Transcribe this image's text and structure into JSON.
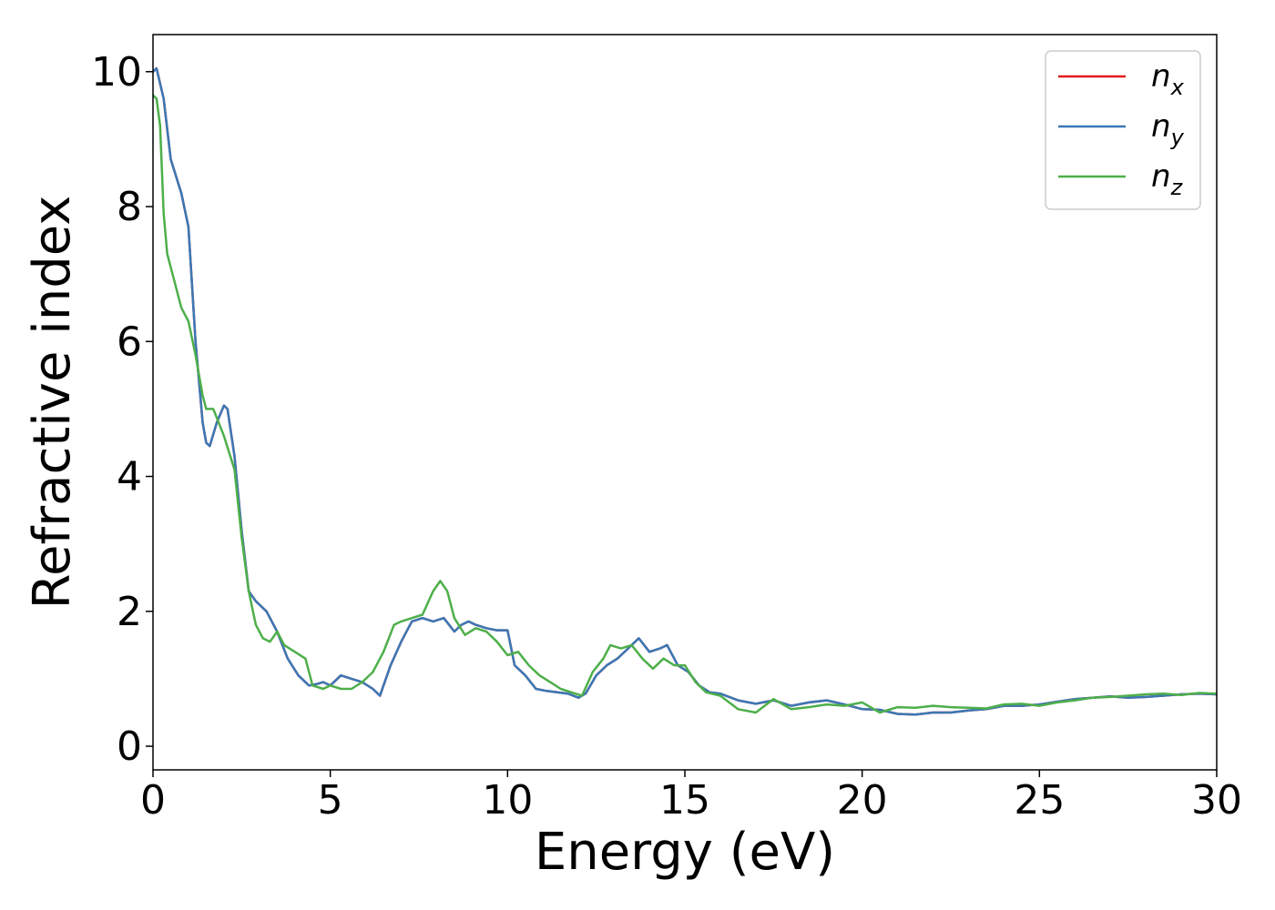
{
  "chart_data": {
    "type": "line",
    "title": "",
    "xlabel": "Energy (eV)",
    "ylabel": "Refractive index",
    "xlim": [
      0,
      30
    ],
    "ylim": [
      -0.35,
      10.55
    ],
    "xticks": [
      0,
      5,
      10,
      15,
      20,
      25,
      30
    ],
    "yticks": [
      0,
      2,
      4,
      6,
      8,
      10
    ],
    "grid": false,
    "legend_position": "top-right",
    "series": [
      {
        "name": "n",
        "subscript": "x",
        "color": "#e41a1c",
        "x": [
          0,
          0.1,
          0.3,
          0.5,
          0.8,
          1.0,
          1.2,
          1.4,
          1.5,
          1.6,
          1.8,
          2.0,
          2.1,
          2.3,
          2.5,
          2.7,
          2.9,
          3.2,
          3.5,
          3.8,
          4.1,
          4.4,
          4.6,
          4.8,
          5.0,
          5.3,
          5.6,
          5.9,
          6.2,
          6.4,
          6.7,
          7.0,
          7.3,
          7.6,
          7.9,
          8.2,
          8.5,
          8.7,
          8.9,
          9.1,
          9.4,
          9.7,
          10.0,
          10.2,
          10.5,
          10.8,
          11.1,
          11.4,
          11.7,
          12.0,
          12.2,
          12.5,
          12.8,
          13.1,
          13.4,
          13.7,
          14.0,
          14.3,
          14.5,
          14.8,
          15.1,
          15.4,
          15.7,
          16.0,
          16.5,
          17.0,
          17.5,
          18.0,
          18.5,
          19.0,
          19.5,
          20.0,
          20.5,
          21.0,
          21.5,
          22.0,
          22.5,
          23.0,
          23.5,
          24.0,
          24.5,
          25.0,
          25.5,
          26.0,
          26.5,
          27.0,
          27.5,
          28.0,
          28.5,
          29.0,
          29.5,
          30.0
        ],
        "y": [
          10.0,
          10.05,
          9.6,
          8.7,
          8.2,
          7.7,
          6.0,
          4.8,
          4.5,
          4.45,
          4.8,
          5.05,
          5.0,
          4.3,
          3.2,
          2.3,
          2.15,
          2.0,
          1.7,
          1.3,
          1.05,
          0.9,
          0.92,
          0.95,
          0.9,
          1.05,
          1.0,
          0.95,
          0.85,
          0.75,
          1.2,
          1.55,
          1.85,
          1.9,
          1.85,
          1.9,
          1.7,
          1.8,
          1.85,
          1.8,
          1.75,
          1.72,
          1.72,
          1.2,
          1.05,
          0.85,
          0.82,
          0.8,
          0.78,
          0.72,
          0.78,
          1.05,
          1.2,
          1.3,
          1.45,
          1.6,
          1.4,
          1.45,
          1.5,
          1.2,
          1.1,
          0.9,
          0.8,
          0.78,
          0.68,
          0.63,
          0.68,
          0.6,
          0.65,
          0.68,
          0.62,
          0.55,
          0.54,
          0.48,
          0.47,
          0.5,
          0.5,
          0.53,
          0.55,
          0.6,
          0.6,
          0.62,
          0.66,
          0.7,
          0.72,
          0.74,
          0.72,
          0.73,
          0.75,
          0.77,
          0.78,
          0.77
        ]
      },
      {
        "name": "n",
        "subscript": "y",
        "color": "#3a78b5",
        "x": [
          0,
          0.1,
          0.3,
          0.5,
          0.8,
          1.0,
          1.2,
          1.4,
          1.5,
          1.6,
          1.8,
          2.0,
          2.1,
          2.3,
          2.5,
          2.7,
          2.9,
          3.2,
          3.5,
          3.8,
          4.1,
          4.4,
          4.6,
          4.8,
          5.0,
          5.3,
          5.6,
          5.9,
          6.2,
          6.4,
          6.7,
          7.0,
          7.3,
          7.6,
          7.9,
          8.2,
          8.5,
          8.7,
          8.9,
          9.1,
          9.4,
          9.7,
          10.0,
          10.2,
          10.5,
          10.8,
          11.1,
          11.4,
          11.7,
          12.0,
          12.2,
          12.5,
          12.8,
          13.1,
          13.4,
          13.7,
          14.0,
          14.3,
          14.5,
          14.8,
          15.1,
          15.4,
          15.7,
          16.0,
          16.5,
          17.0,
          17.5,
          18.0,
          18.5,
          19.0,
          19.5,
          20.0,
          20.5,
          21.0,
          21.5,
          22.0,
          22.5,
          23.0,
          23.5,
          24.0,
          24.5,
          25.0,
          25.5,
          26.0,
          26.5,
          27.0,
          27.5,
          28.0,
          28.5,
          29.0,
          29.5,
          30.0
        ],
        "y": [
          10.0,
          10.05,
          9.6,
          8.7,
          8.2,
          7.7,
          6.0,
          4.8,
          4.5,
          4.45,
          4.8,
          5.05,
          5.0,
          4.3,
          3.2,
          2.3,
          2.15,
          2.0,
          1.7,
          1.3,
          1.05,
          0.9,
          0.92,
          0.95,
          0.9,
          1.05,
          1.0,
          0.95,
          0.85,
          0.75,
          1.2,
          1.55,
          1.85,
          1.9,
          1.85,
          1.9,
          1.7,
          1.8,
          1.85,
          1.8,
          1.75,
          1.72,
          1.72,
          1.2,
          1.05,
          0.85,
          0.82,
          0.8,
          0.78,
          0.72,
          0.78,
          1.05,
          1.2,
          1.3,
          1.45,
          1.6,
          1.4,
          1.45,
          1.5,
          1.2,
          1.1,
          0.9,
          0.8,
          0.78,
          0.68,
          0.63,
          0.68,
          0.6,
          0.65,
          0.68,
          0.62,
          0.55,
          0.54,
          0.48,
          0.47,
          0.5,
          0.5,
          0.53,
          0.55,
          0.6,
          0.6,
          0.62,
          0.66,
          0.7,
          0.72,
          0.74,
          0.72,
          0.73,
          0.75,
          0.77,
          0.78,
          0.77
        ]
      },
      {
        "name": "n",
        "subscript": "z",
        "color": "#4daf4a",
        "x": [
          0,
          0.1,
          0.2,
          0.3,
          0.4,
          0.6,
          0.8,
          1.0,
          1.2,
          1.4,
          1.5,
          1.7,
          2.0,
          2.3,
          2.5,
          2.7,
          2.9,
          3.1,
          3.3,
          3.5,
          3.7,
          4.0,
          4.3,
          4.5,
          4.8,
          5.0,
          5.3,
          5.6,
          5.9,
          6.2,
          6.5,
          6.8,
          7.0,
          7.3,
          7.6,
          7.9,
          8.1,
          8.3,
          8.5,
          8.8,
          9.1,
          9.4,
          9.7,
          10.0,
          10.3,
          10.6,
          10.9,
          11.2,
          11.5,
          11.8,
          12.1,
          12.4,
          12.7,
          12.9,
          13.2,
          13.5,
          13.8,
          14.1,
          14.4,
          14.7,
          15.0,
          15.3,
          15.6,
          16.0,
          16.5,
          17.0,
          17.5,
          18.0,
          18.5,
          19.0,
          19.5,
          20.0,
          20.5,
          21.0,
          21.5,
          22.0,
          22.5,
          23.0,
          23.5,
          24.0,
          24.5,
          25.0,
          25.5,
          26.0,
          26.5,
          27.0,
          27.5,
          28.0,
          28.5,
          29.0,
          29.5,
          30.0
        ],
        "y": [
          9.65,
          9.6,
          9.2,
          7.9,
          7.3,
          6.9,
          6.5,
          6.3,
          5.8,
          5.2,
          5.0,
          5.0,
          4.6,
          4.1,
          3.1,
          2.3,
          1.8,
          1.6,
          1.55,
          1.7,
          1.5,
          1.4,
          1.3,
          0.9,
          0.85,
          0.9,
          0.85,
          0.85,
          0.95,
          1.1,
          1.4,
          1.8,
          1.85,
          1.9,
          1.95,
          2.3,
          2.45,
          2.3,
          1.9,
          1.65,
          1.75,
          1.7,
          1.55,
          1.35,
          1.4,
          1.2,
          1.05,
          0.95,
          0.85,
          0.8,
          0.75,
          1.1,
          1.3,
          1.5,
          1.45,
          1.5,
          1.3,
          1.15,
          1.3,
          1.2,
          1.2,
          0.95,
          0.8,
          0.75,
          0.55,
          0.5,
          0.7,
          0.55,
          0.58,
          0.62,
          0.6,
          0.65,
          0.5,
          0.58,
          0.57,
          0.6,
          0.58,
          0.57,
          0.56,
          0.62,
          0.63,
          0.6,
          0.65,
          0.68,
          0.72,
          0.73,
          0.75,
          0.77,
          0.78,
          0.76,
          0.79,
          0.78
        ]
      }
    ]
  }
}
